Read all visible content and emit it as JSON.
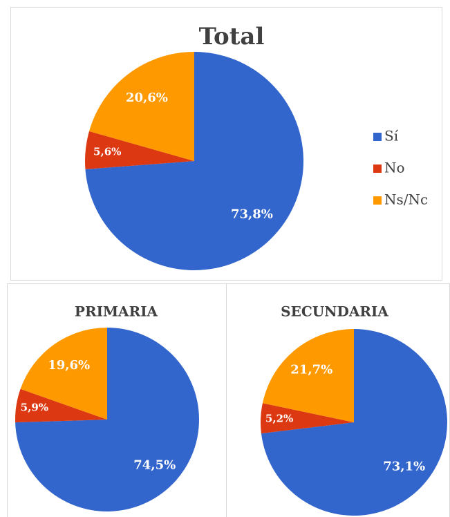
{
  "chart_data": [
    {
      "type": "pie",
      "title": "Total",
      "categories": [
        "Sí",
        "No",
        "Ns/Nc"
      ],
      "values": [
        73.8,
        5.6,
        20.6
      ],
      "value_labels": [
        "73,8%",
        "5,6%",
        "20,6%"
      ],
      "colors": [
        "#3366cc",
        "#dc3912",
        "#ff9900"
      ],
      "legend": "right"
    },
    {
      "type": "pie",
      "title": "PRIMARIA",
      "values": [
        74.5,
        5.9,
        19.6
      ],
      "value_labels": [
        "74,5%",
        "5,9%",
        "19,6%"
      ],
      "colors": [
        "#3366cc",
        "#dc3912",
        "#ff9900"
      ]
    },
    {
      "type": "pie",
      "title": "SECUNDARIA",
      "values": [
        73.1,
        5.2,
        21.7
      ],
      "value_labels": [
        "73,1%",
        "5,2%",
        "21,7%"
      ],
      "colors": [
        "#3366cc",
        "#dc3912",
        "#ff9900"
      ]
    }
  ]
}
